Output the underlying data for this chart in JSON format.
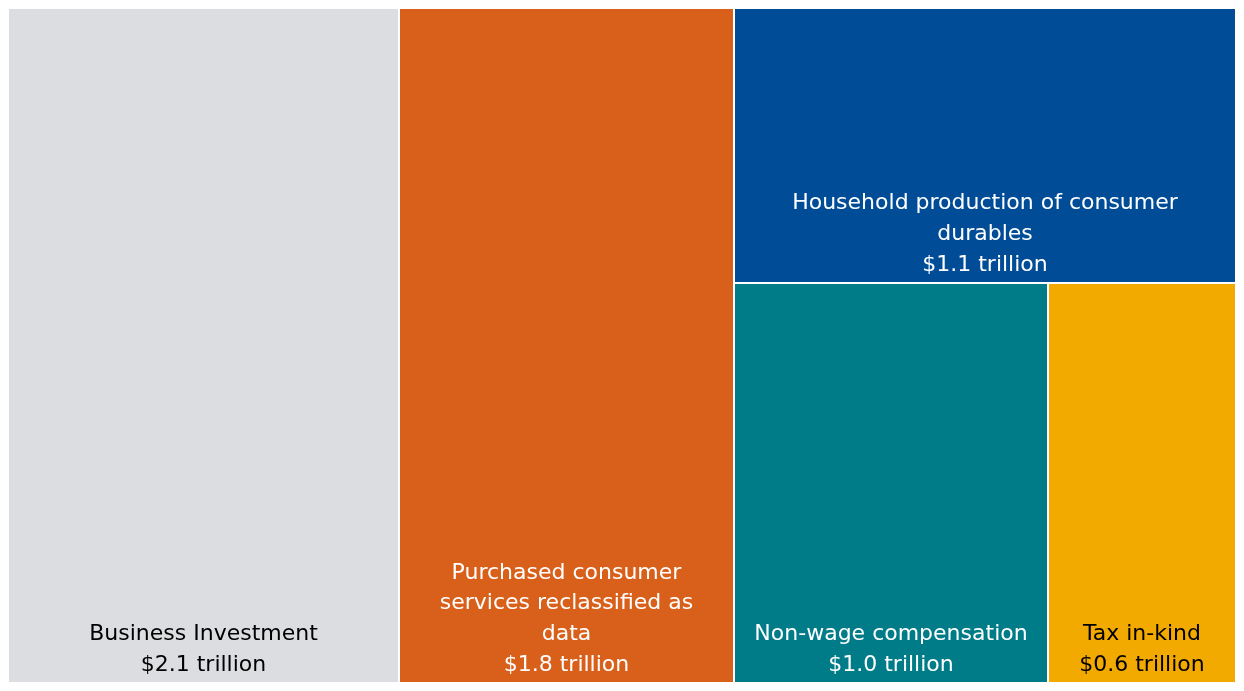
{
  "chart_data": {
    "type": "other",
    "categories": [
      "Business Investment",
      "Purchased consumer services reclassified as data",
      "Household production of consumer durables",
      "Non-wage compensation",
      "Tax in-kind"
    ],
    "values": [
      2.1,
      1.8,
      1.1,
      1.0,
      0.6
    ],
    "value_labels": [
      "$2.1 trillion",
      "$1.8 trillion",
      "$1.1 trillion",
      "$1.0 trillion",
      "$0.6 trillion"
    ],
    "colors": [
      "#dcdde0",
      "#d9601a",
      "#004c97",
      "#007c89",
      "#f2a900"
    ]
  }
}
